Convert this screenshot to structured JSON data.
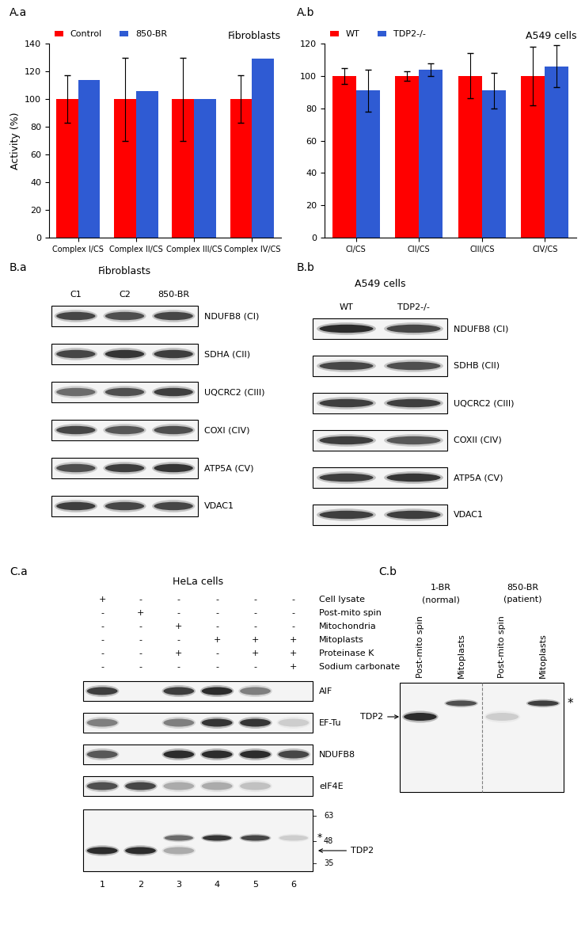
{
  "chart_data": [
    {
      "panel": "A.a",
      "type": "bar",
      "title": "Fibroblasts",
      "y_label": "Activity (%)",
      "categories": [
        "Complex I/CS",
        "Complex II/CS",
        "Complex III/CS",
        "Complex IV/CS"
      ],
      "series": [
        {
          "name": "Control",
          "color": "#ff0000",
          "values": [
            100,
            100,
            100,
            100
          ],
          "errors": [
            17,
            30,
            30,
            17
          ]
        },
        {
          "name": "850-BR",
          "color": "#2f5bd3",
          "values": [
            114,
            106,
            100,
            129
          ]
        }
      ],
      "ylim": [
        0,
        140
      ],
      "yticks": [
        0,
        20,
        40,
        60,
        80,
        100,
        120,
        140
      ],
      "legend": "top"
    },
    {
      "panel": "A.b",
      "type": "bar",
      "title": "A549 cells",
      "categories": [
        "CI/CS",
        "CII/CS",
        "CIII/CS",
        "CIV/CS"
      ],
      "series": [
        {
          "name": "WT",
          "color": "#ff0000",
          "values": [
            100,
            100,
            100,
            100
          ],
          "errors": [
            5,
            3,
            14,
            18
          ]
        },
        {
          "name": "TDP2-/-",
          "color": "#2f5bd3",
          "values": [
            91,
            104,
            91,
            106
          ],
          "errors": [
            13,
            4,
            11,
            13
          ]
        }
      ],
      "ylim": [
        0,
        120
      ],
      "yticks": [
        0,
        20,
        40,
        60,
        80,
        100,
        120
      ],
      "legend": "top"
    }
  ],
  "blots": {
    "B.a": {
      "panel": "B.a",
      "title": "Fibroblasts",
      "lanes": [
        "C1",
        "C2",
        "850-BR"
      ],
      "rows": [
        {
          "name": "NDUFB8 (CI)",
          "intensity": [
            0.8,
            0.75,
            0.8
          ]
        },
        {
          "name": "SDHA (CII)",
          "intensity": [
            0.8,
            0.9,
            0.85
          ]
        },
        {
          "name": "UQCRC2 (CIII)",
          "intensity": [
            0.6,
            0.75,
            0.85
          ]
        },
        {
          "name": "COXI (CIV)",
          "intensity": [
            0.8,
            0.7,
            0.75
          ]
        },
        {
          "name": "ATP5A (CV)",
          "intensity": [
            0.75,
            0.85,
            0.9
          ]
        },
        {
          "name": "VDAC1",
          "intensity": [
            0.85,
            0.8,
            0.8
          ]
        }
      ]
    },
    "B.b": {
      "panel": "B.b",
      "title": "A549 cells",
      "lanes": [
        "WT",
        "TDP2-/-"
      ],
      "rows": [
        {
          "name": "NDUFB8 (CI)",
          "intensity": [
            0.95,
            0.8
          ]
        },
        {
          "name": "SDHB (CII)",
          "intensity": [
            0.8,
            0.75
          ]
        },
        {
          "name": "UQCRC2 (CIII)",
          "intensity": [
            0.85,
            0.85
          ]
        },
        {
          "name": "COXII (CIV)",
          "intensity": [
            0.85,
            0.7
          ]
        },
        {
          "name": "ATP5A (CV)",
          "intensity": [
            0.85,
            0.9
          ]
        },
        {
          "name": "VDAC1",
          "intensity": [
            0.85,
            0.85
          ]
        }
      ]
    },
    "C.a": {
      "panel": "C.a",
      "title": "HeLa cells",
      "conditions": [
        {
          "name": "Cell lysate",
          "marks": [
            "+",
            "-",
            "-",
            "-",
            "-",
            "-"
          ]
        },
        {
          "name": "Post-mito spin",
          "marks": [
            "-",
            "+",
            "-",
            "-",
            "-",
            "-"
          ]
        },
        {
          "name": "Mitochondria",
          "marks": [
            "-",
            "-",
            "+",
            "-",
            "-",
            "-"
          ]
        },
        {
          "name": "Mitoplasts",
          "marks": [
            "-",
            "-",
            "-",
            "+",
            "+",
            "+"
          ]
        },
        {
          "name": "Proteinase K",
          "marks": [
            "-",
            "-",
            "+",
            "-",
            "+",
            "+"
          ]
        },
        {
          "name": "Sodium carbonate",
          "marks": [
            "-",
            "-",
            "-",
            "-",
            "-",
            "+"
          ]
        }
      ],
      "rows": [
        {
          "name": "AIF",
          "intensity": [
            0.85,
            0,
            0.85,
            0.95,
            0.5,
            0
          ]
        },
        {
          "name": "EF-Tu",
          "intensity": [
            0.5,
            0,
            0.5,
            0.9,
            0.9,
            0.15
          ]
        },
        {
          "name": "NDUFB8",
          "intensity": [
            0.7,
            0,
            0.95,
            0.95,
            0.95,
            0.8
          ]
        },
        {
          "name": "eIF4E",
          "intensity": [
            0.75,
            0.8,
            0.3,
            0.3,
            0.2,
            0
          ]
        },
        {
          "name": "TDP2",
          "intensity": [
            0.95,
            0.95,
            0.3,
            0,
            0,
            0
          ],
          "star": "*",
          "star_intensity": [
            0,
            0,
            0.6,
            0.9,
            0.8,
            0.15
          ]
        }
      ],
      "size_markers": [
        63,
        48,
        35
      ],
      "lane_numbers": [
        1,
        2,
        3,
        4,
        5,
        6
      ]
    },
    "C.b": {
      "panel": "C.b",
      "groups": [
        {
          "name": "1-BR",
          "note": "(normal)",
          "lanes": [
            "Post-mito spin",
            "Mitoplasts"
          ]
        },
        {
          "name": "850-BR",
          "note": "(patient)",
          "lanes": [
            "Post-mito spin",
            "Mitoplasts"
          ]
        }
      ],
      "rows": [
        {
          "name": "TDP2",
          "intensity": [
            0.95,
            0,
            0.15,
            0
          ],
          "star": "*",
          "star_intensity": [
            0,
            0.75,
            0,
            0.85
          ]
        }
      ]
    }
  }
}
